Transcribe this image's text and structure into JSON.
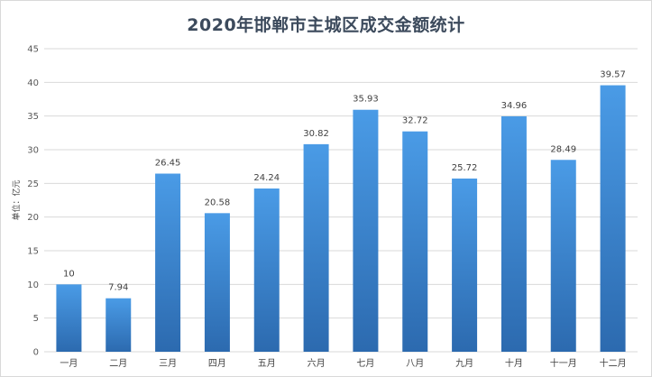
{
  "chart_data": {
    "type": "bar",
    "title": "2020年邯郸市主城区成交金额统计",
    "xlabel": "",
    "ylabel": "单位：亿元",
    "ylim": [
      0,
      45
    ],
    "yticks": [
      0,
      5,
      10,
      15,
      20,
      25,
      30,
      35,
      40,
      45
    ],
    "categories": [
      "一月",
      "二月",
      "三月",
      "四月",
      "五月",
      "六月",
      "七月",
      "八月",
      "九月",
      "十月",
      "十一月",
      "十二月"
    ],
    "values": [
      10,
      7.94,
      26.45,
      20.58,
      24.24,
      30.82,
      35.93,
      32.72,
      25.72,
      34.96,
      28.49,
      39.57
    ],
    "value_labels": [
      "10",
      "7.94",
      "26.45",
      "20.58",
      "24.24",
      "30.82",
      "35.93",
      "32.72",
      "25.72",
      "34.96",
      "28.49",
      "39.57"
    ],
    "grid": true,
    "legend": "none",
    "colors": {
      "bar_top": "#4a9be6",
      "bar_bottom": "#2c6aaf",
      "grid": "#d9d9d9",
      "title": "#3c4a5c"
    }
  }
}
